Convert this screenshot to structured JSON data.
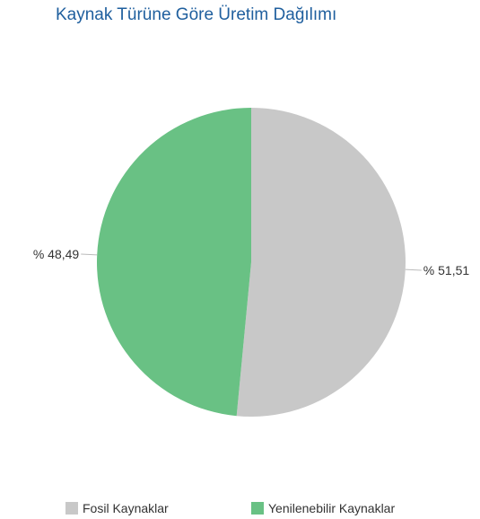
{
  "chart_data": {
    "type": "pie",
    "title": "Kaynak Türüne Göre Üretim Dağılımı",
    "series": [
      {
        "name": "Fosil Kaynaklar",
        "value": 51.51,
        "label": "% 51,51",
        "color": "#c8c8c8"
      },
      {
        "name": "Yenilenebilir Kaynaklar",
        "value": 48.49,
        "label": "% 48,49",
        "color": "#69c184"
      }
    ],
    "legend": "bottom"
  }
}
